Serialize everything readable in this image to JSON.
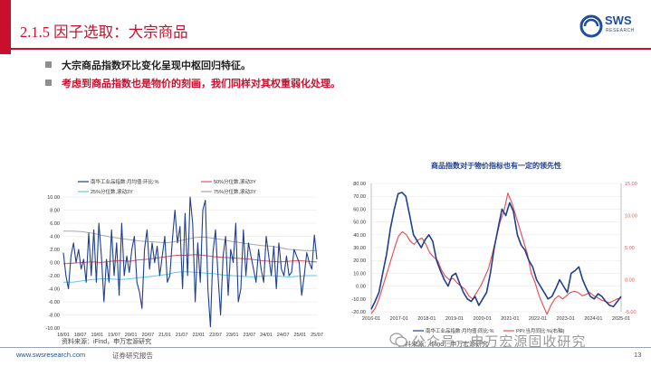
{
  "header": {
    "title": "2.1.5 因子选取：大宗商品",
    "logo_text": "SWS",
    "logo_sub": "RESEARCH"
  },
  "bullets": [
    "大宗商品指数环比变化呈现中枢回归特征。",
    "考虑到商品指数也是物价的刻画，我们同样对其权重弱化处理。"
  ],
  "colors": {
    "accent": "#c8102e",
    "brand_blue": "#1e4e9c",
    "series_navy": "#1f3f8f",
    "series_red": "#e8545c",
    "series_cyan": "#5ccbe8",
    "series_gray": "#a8a8a8"
  },
  "chart_data": [
    {
      "type": "line",
      "title": "",
      "legend": [
        "南华工业品指数:月均值:环比:%",
        "50%分位数,滚动3Y",
        "25%分位数,滚动3Y",
        "75%分位数,滚动3Y"
      ],
      "legend_placement": "top",
      "x_ticks": [
        "18/01",
        "18/07",
        "19/01",
        "19/07",
        "20/01",
        "20/07",
        "21/01",
        "21/07",
        "22/01",
        "22/07",
        "23/01",
        "23/07",
        "24/01",
        "24/07",
        "25/01",
        "25/07"
      ],
      "y_ticks": [
        "10.00",
        "8.00",
        "6.00",
        "4.00",
        "2.00",
        "0.00",
        "-2.00",
        "-4.00",
        "-6.00",
        "-8.00",
        "-10.00"
      ],
      "ylim": [
        -10,
        10
      ],
      "grid": true,
      "series": [
        {
          "name": "南华工业品指数:月均值:环比:%",
          "values": [
            1.5,
            -2,
            -4,
            1,
            3,
            0,
            2,
            -1,
            0.5,
            -3,
            4.5,
            -2,
            5,
            -3,
            6,
            1,
            -6,
            0.5,
            -3,
            5,
            -2,
            3,
            -5,
            6,
            -2,
            1,
            -1.5,
            2,
            4,
            -3,
            -4.5,
            -7,
            2,
            5,
            -1,
            3,
            0,
            2.5,
            -2,
            1,
            4,
            -3,
            -2,
            3.5,
            8,
            3,
            5.5,
            -4,
            7.5,
            -2,
            10,
            6,
            -6,
            3,
            -3,
            8,
            9.5,
            -4,
            -9.8,
            1.5,
            5,
            -2,
            -8,
            1,
            4,
            -5,
            2,
            0,
            6,
            -6,
            -4,
            5,
            -2,
            3,
            1,
            -1,
            -3,
            2,
            -1,
            -3,
            4,
            1,
            -2,
            2.5,
            -4,
            3,
            -1,
            -2,
            1,
            -2,
            -1.5,
            2,
            1,
            0,
            -5,
            -2,
            1.5,
            0,
            -1,
            4.2,
            0.5
          ]
        },
        {
          "name": "50%分位数,滚动3Y",
          "values": [
            -0.2,
            -0.1,
            0,
            0.1,
            0,
            0.2,
            0.3,
            0.2,
            0.4,
            0.5,
            0.7,
            0.9,
            1.1,
            1.1,
            1.2,
            1.1,
            0.9,
            0.8,
            0.7,
            0.6,
            0.5,
            0.3,
            0.2,
            0.1,
            0.2,
            0.3,
            0.2,
            0.1
          ]
        },
        {
          "name": "25%分位数,滚动3Y",
          "values": [
            -3,
            -3,
            -2.8,
            -2.6,
            -2.5,
            -2.5,
            -2.6,
            -2.5,
            -2.3,
            -2.2,
            -2,
            -1.8,
            -1.5,
            -1.4,
            -1.5,
            -1.6,
            -1.7,
            -1.9,
            -2,
            -2.1,
            -2.2,
            -2.1,
            -2,
            -2.1,
            -2.2,
            -2.1,
            -2,
            -2
          ]
        },
        {
          "name": "75%分位数,滚动3Y",
          "values": [
            4.8,
            4.8,
            4.7,
            4.5,
            4.2,
            3.9,
            3.7,
            3.5,
            3.3,
            3.2,
            3.1,
            3,
            3.2,
            3.5,
            3.8,
            3.9,
            3.7,
            3.5,
            3.2,
            3,
            2.8,
            2.6,
            2.5,
            2.3,
            2,
            1.9,
            1.8,
            1.8
          ]
        }
      ],
      "source": "资料来源：iFind，申万宏源研究"
    },
    {
      "type": "line",
      "title": "商品指数对于物价指标也有一定的领先性",
      "legend": [
        "南华工业品指数:月均值:同比:%",
        "PPI:当月同比:%(右轴)"
      ],
      "legend_placement": "bottom",
      "x_ticks": [
        "2016-01",
        "2017-01",
        "2018-01",
        "2019-01",
        "2020-01",
        "2021-01",
        "2022-01",
        "2023-01",
        "2024-01",
        "2025-01"
      ],
      "y_ticks_left": [
        "80.00",
        "70.00",
        "60.00",
        "50.00",
        "40.00",
        "30.00",
        "20.00",
        "10.00",
        "0.00",
        "-10.00",
        "-20.00"
      ],
      "y_ticks_right": [
        "15.00",
        "10.00",
        "5.00",
        "0.00",
        "-5.00"
      ],
      "ylim_left": [
        -20,
        80
      ],
      "ylim_right": [
        -5,
        15
      ],
      "grid": true,
      "series": [
        {
          "name": "南华工业品指数:月均值:同比:%",
          "axis": "left",
          "values": [
            -18,
            -12,
            -5,
            10,
            25,
            45,
            60,
            72,
            73,
            70,
            55,
            40,
            35,
            30,
            36,
            40,
            35,
            20,
            12,
            5,
            0,
            8,
            10,
            2,
            -5,
            -10,
            -12,
            -8,
            -15,
            -10,
            -5,
            10,
            30,
            45,
            60,
            55,
            65,
            58,
            40,
            32,
            28,
            20,
            15,
            5,
            0,
            -5,
            -10,
            -8,
            -2,
            5,
            0,
            -5,
            10,
            12,
            15,
            5,
            -2,
            -8,
            -10,
            -6,
            -8,
            -12,
            -15,
            -16,
            -12,
            -8
          ]
        },
        {
          "name": "PPI:当月同比:%(右轴)",
          "axis": "right",
          "values": [
            -5.3,
            -4.5,
            -3,
            -1,
            1,
            3,
            5,
            6.8,
            7.5,
            7,
            6,
            5.5,
            6.2,
            6.5,
            5.5,
            4.2,
            3.5,
            3,
            1.5,
            0.5,
            0,
            0.2,
            -0.5,
            -1,
            -1.5,
            -2.5,
            -3,
            -2,
            -1,
            0.3,
            1.7,
            4,
            6.5,
            9,
            10.7,
            13.5,
            12,
            10,
            8,
            6,
            4,
            1,
            -0.5,
            -2.5,
            -4,
            -5.4,
            -4,
            -3,
            -2.5,
            -3,
            -2.5,
            -2,
            -1.8,
            -2,
            -2.5,
            -2.3,
            -2,
            -2.5,
            -2.8,
            -3.2,
            -3.4,
            -3.6,
            -3.3,
            -3,
            -2.8
          ]
        }
      ],
      "source": "资料来源：iFind，申万宏源研究"
    }
  ],
  "footer": {
    "website": "www.swsresearch.com",
    "report_type": "证券研究报告",
    "page": "13",
    "watermark": "公众号 · 申万宏源固收研究"
  }
}
